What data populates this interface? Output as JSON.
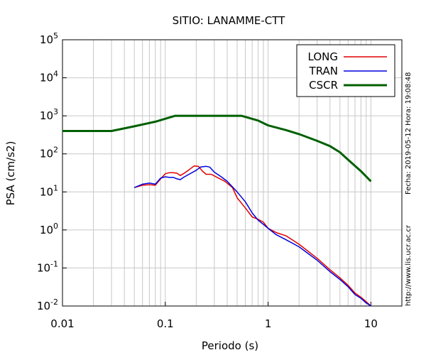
{
  "chart_data": {
    "type": "line",
    "title": "SITIO: LANAMME-CTT",
    "xlabel": "Periodo (s)",
    "ylabel": "PSA (cm/s2)",
    "xscale": "log",
    "yscale": "log",
    "xlim": [
      0.01,
      20
    ],
    "ylim": [
      0.01,
      100000
    ],
    "x_ticks": [
      {
        "value": 0.01,
        "label": "0.01"
      },
      {
        "value": 0.1,
        "label": "0.1"
      },
      {
        "value": 1,
        "label": "1"
      },
      {
        "value": 10,
        "label": "10"
      }
    ],
    "y_ticks": [
      {
        "value": 0.01,
        "base": "10",
        "exp": "-2"
      },
      {
        "value": 0.1,
        "base": "10",
        "exp": "-1"
      },
      {
        "value": 1,
        "base": "10",
        "exp": "0"
      },
      {
        "value": 10,
        "base": "10",
        "exp": "1"
      },
      {
        "value": 100,
        "base": "10",
        "exp": "2"
      },
      {
        "value": 1000,
        "base": "10",
        "exp": "3"
      },
      {
        "value": 10000,
        "base": "10",
        "exp": "4"
      },
      {
        "value": 100000,
        "base": "10",
        "exp": "5"
      }
    ],
    "grid": true,
    "legend_position": "top-right",
    "series": [
      {
        "name": "LONG",
        "color": "#e00000",
        "points": [
          [
            0.05,
            13
          ],
          [
            0.06,
            15
          ],
          [
            0.07,
            15.5
          ],
          [
            0.08,
            15
          ],
          [
            0.09,
            22
          ],
          [
            0.1,
            30
          ],
          [
            0.11,
            32
          ],
          [
            0.12,
            32
          ],
          [
            0.13,
            31
          ],
          [
            0.14,
            27
          ],
          [
            0.15,
            30
          ],
          [
            0.17,
            38
          ],
          [
            0.19,
            48
          ],
          [
            0.21,
            47
          ],
          [
            0.23,
            35
          ],
          [
            0.25,
            29
          ],
          [
            0.28,
            29
          ],
          [
            0.32,
            24
          ],
          [
            0.38,
            19
          ],
          [
            0.45,
            13
          ],
          [
            0.5,
            7
          ],
          [
            0.6,
            3.8
          ],
          [
            0.7,
            2.2
          ],
          [
            0.8,
            1.9
          ],
          [
            0.9,
            1.6
          ],
          [
            1.0,
            1.1
          ],
          [
            1.2,
            0.85
          ],
          [
            1.5,
            0.7
          ],
          [
            2.0,
            0.42
          ],
          [
            3.0,
            0.18
          ],
          [
            4.0,
            0.09
          ],
          [
            5.0,
            0.055
          ],
          [
            6.0,
            0.035
          ],
          [
            7.0,
            0.022
          ],
          [
            8.0,
            0.017
          ],
          [
            9.0,
            0.013
          ],
          [
            10.0,
            0.01
          ]
        ]
      },
      {
        "name": "TRAN",
        "color": "#0000e0",
        "points": [
          [
            0.05,
            13
          ],
          [
            0.06,
            16
          ],
          [
            0.07,
            17
          ],
          [
            0.08,
            16
          ],
          [
            0.09,
            23
          ],
          [
            0.1,
            25
          ],
          [
            0.11,
            24
          ],
          [
            0.12,
            24
          ],
          [
            0.13,
            22
          ],
          [
            0.14,
            21
          ],
          [
            0.15,
            24
          ],
          [
            0.17,
            29
          ],
          [
            0.2,
            37
          ],
          [
            0.22,
            45
          ],
          [
            0.25,
            47
          ],
          [
            0.27,
            45
          ],
          [
            0.3,
            33
          ],
          [
            0.35,
            25
          ],
          [
            0.4,
            19
          ],
          [
            0.5,
            10
          ],
          [
            0.6,
            5.5
          ],
          [
            0.7,
            2.8
          ],
          [
            0.8,
            1.8
          ],
          [
            0.9,
            1.4
          ],
          [
            1.0,
            1.1
          ],
          [
            1.2,
            0.75
          ],
          [
            1.5,
            0.55
          ],
          [
            2.0,
            0.36
          ],
          [
            3.0,
            0.16
          ],
          [
            4.0,
            0.08
          ],
          [
            5.0,
            0.05
          ],
          [
            6.0,
            0.032
          ],
          [
            7.0,
            0.02
          ],
          [
            8.0,
            0.016
          ],
          [
            9.0,
            0.012
          ],
          [
            10.0,
            0.01
          ]
        ]
      },
      {
        "name": "CSCR",
        "color": "#006000",
        "points": [
          [
            0.01,
            400
          ],
          [
            0.03,
            400
          ],
          [
            0.05,
            530
          ],
          [
            0.08,
            700
          ],
          [
            0.125,
            1000
          ],
          [
            0.5,
            1000
          ],
          [
            0.55,
            1000
          ],
          [
            0.8,
            750
          ],
          [
            1.0,
            560
          ],
          [
            1.5,
            420
          ],
          [
            2.0,
            330
          ],
          [
            3.0,
            220
          ],
          [
            4.0,
            160
          ],
          [
            5.0,
            110
          ],
          [
            6.0,
            70
          ],
          [
            8.0,
            35
          ],
          [
            10.0,
            19
          ]
        ]
      }
    ]
  },
  "side_text": {
    "timestamp": "Fecha: 2019-05-12  Hora: 19:08:48",
    "url": "http://www.lis.ucr.ac.cr"
  }
}
